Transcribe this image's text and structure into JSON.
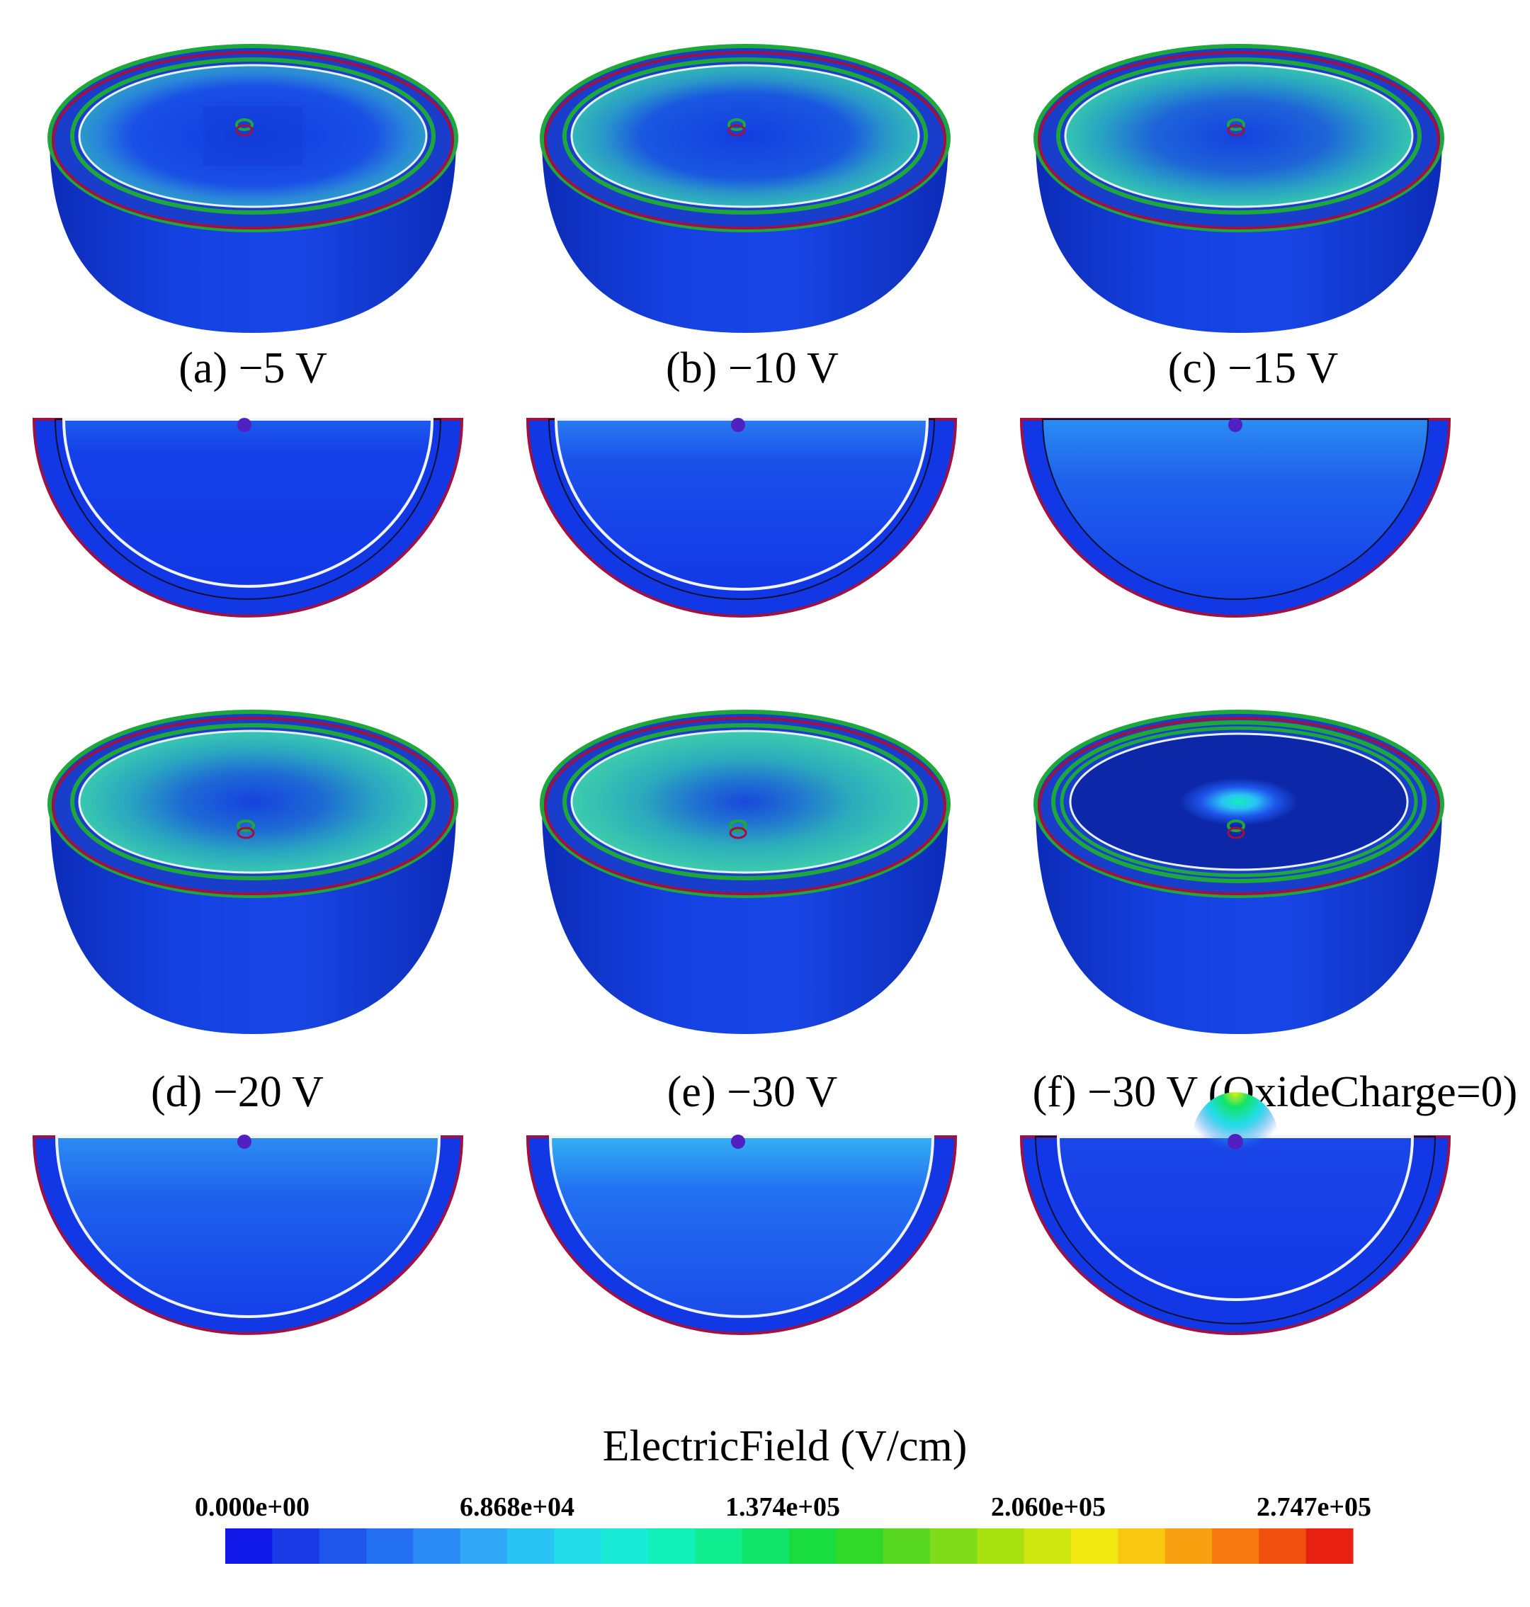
{
  "panels": [
    {
      "id": "a",
      "caption": "(a) −5 V",
      "variant": "low"
    },
    {
      "id": "b",
      "caption": "(b) −10 V",
      "variant": "mid1"
    },
    {
      "id": "c",
      "caption": "(c) −15 V",
      "variant": "mid2"
    },
    {
      "id": "d",
      "caption": "(d) −20 V",
      "variant": "mid3"
    },
    {
      "id": "e",
      "caption": "(e) −30 V",
      "variant": "high"
    },
    {
      "id": "f",
      "caption": "(f) −30 V (OxideCharge=0)",
      "variant": "zero"
    }
  ],
  "colorbar": {
    "title": "ElectricField (V/cm)",
    "ticks": [
      "0.000e+00",
      "6.868e+04",
      "1.374e+05",
      "2.060e+05",
      "2.747e+05"
    ],
    "colors": [
      "#1018e8",
      "#1a3ae8",
      "#1e56ec",
      "#2270f0",
      "#2a8cf4",
      "#30a8f6",
      "#2ac4f4",
      "#22dcea",
      "#18ecd8",
      "#10f0b8",
      "#10ec90",
      "#10e468",
      "#18dc40",
      "#30d828",
      "#58d820",
      "#80dc18",
      "#a8e010",
      "#d0e810",
      "#f0e810",
      "#f8c810",
      "#f8a010",
      "#f87810",
      "#f05010",
      "#e82010"
    ]
  },
  "colors": {
    "shell": "#1238e6",
    "shell_dark": "#0a22a8",
    "rim_green": "#1ea83c",
    "rim_red": "#a01040",
    "rim_magenta": "#d030e0",
    "interior_dark": "#0f3ae0",
    "interior_light": "#1e6cf0",
    "interior_teal": "#22b4c0"
  }
}
